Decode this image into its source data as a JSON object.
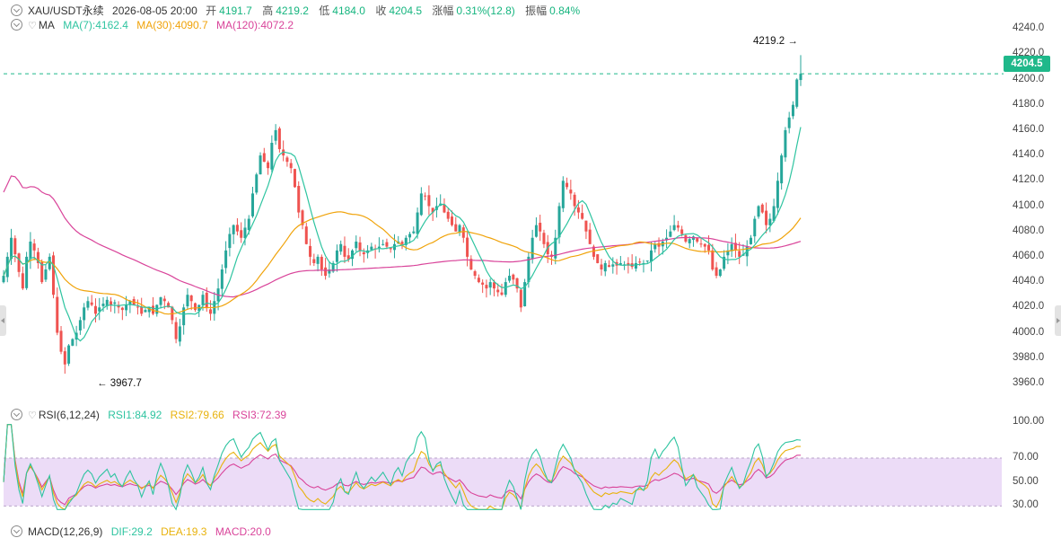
{
  "header": {
    "symbol": "XAU/USDT永续",
    "datetime": "2026-08-05 20:00",
    "open_label": "开",
    "open_value": "4191.7",
    "high_label": "高",
    "high_value": "4219.2",
    "low_label": "低",
    "low_value": "4184.0",
    "close_label": "收",
    "close_value": "4204.5",
    "change_label": "涨幅",
    "change_value": "0.31%(12.8)",
    "amplitude_label": "振幅",
    "amplitude_value": "0.84%"
  },
  "ma_indicator": {
    "name": "MA",
    "ma7": "MA(7):4162.4",
    "ma30": "MA(30):4090.7",
    "ma120": "MA(120):4072.2"
  },
  "rsi_indicator": {
    "name": "RSI(6,12,24)",
    "rsi1": "RSI1:84.92",
    "rsi2": "RSI2:79.66",
    "rsi3": "RSI3:72.39"
  },
  "macd_indicator": {
    "name": "MACD(12,26,9)",
    "dif": "DIF:29.2",
    "dea": "DEA:19.3",
    "macd": "MACD:20.0"
  },
  "annotations": {
    "high_marker": "4219.2",
    "low_marker": "3967.7",
    "current_price": "4204.5"
  },
  "colors": {
    "up": "#26a69a",
    "down": "#ef5350",
    "ma7": "#2ec4a0",
    "ma30": "#f0a30a",
    "ma120": "#d9449a",
    "price_tag": "#1fb88a",
    "rsi_band": "#ecdcf7"
  },
  "chart_data": {
    "type": "candlestick",
    "price_axis_ticks": [
      "4240.0",
      "4220.0",
      "4200.0",
      "4180.0",
      "4160.0",
      "4140.0",
      "4120.0",
      "4100.0",
      "4080.0",
      "4060.0",
      "4040.0",
      "4020.0",
      "4000.0",
      "3980.0",
      "3960.0"
    ],
    "price_ylim": [
      3950,
      4250
    ],
    "rsi_axis_ticks": [
      "100.00",
      "70.00",
      "50.00",
      "30.00"
    ],
    "rsi_ylim": [
      25,
      100
    ],
    "rsi_band": [
      30,
      70
    ],
    "close_path": [
      4045,
      4060,
      4075,
      4062,
      4048,
      4035,
      4060,
      4072,
      4065,
      4055,
      4040,
      4050,
      4060,
      4030,
      4000,
      3985,
      3975,
      3990,
      3995,
      4000,
      4010,
      4020,
      4025,
      4022,
      4015,
      4020,
      4023,
      4026,
      4022,
      4024,
      4020,
      4018,
      4022,
      4025,
      4022,
      4020,
      4015,
      4018,
      4020,
      4015,
      4022,
      4028,
      4025,
      4020,
      4010,
      3995,
      4005,
      4020,
      4030,
      4025,
      4018,
      4022,
      4030,
      4020,
      4015,
      4025,
      4035,
      4050,
      4065,
      4078,
      4085,
      4080,
      4075,
      4083,
      4090,
      4110,
      4125,
      4140,
      4135,
      4130,
      4150,
      4160,
      4145,
      4140,
      4135,
      4130,
      4115,
      4095,
      4085,
      4070,
      4060,
      4055,
      4060,
      4050,
      4045,
      4050,
      4055,
      4065,
      4070,
      4060,
      4058,
      4065,
      4072,
      4065,
      4062,
      4065,
      4068,
      4066,
      4068,
      4070,
      4068,
      4066,
      4070,
      4072,
      4070,
      4075,
      4078,
      4080,
      4095,
      4110,
      4108,
      4100,
      4095,
      4100,
      4102,
      4095,
      4090,
      4085,
      4080,
      4085,
      4075,
      4060,
      4050,
      4045,
      4040,
      4038,
      4035,
      4040,
      4035,
      4032,
      4030,
      4040,
      4045,
      4042,
      4035,
      4020,
      4040,
      4060,
      4075,
      4085,
      4080,
      4070,
      4062,
      4060,
      4075,
      4100,
      4120,
      4115,
      4110,
      4100,
      4095,
      4090,
      4080,
      4070,
      4060,
      4055,
      4050,
      4055,
      4052,
      4054,
      4053,
      4055,
      4054,
      4053,
      4052,
      4055,
      4056,
      4055,
      4057,
      4065,
      4070,
      4068,
      4072,
      4075,
      4080,
      4085,
      4083,
      4078,
      4072,
      4074,
      4076,
      4072,
      4070,
      4068,
      4065,
      4050,
      4045,
      4050,
      4060,
      4065,
      4070,
      4065,
      4060,
      4062,
      4068,
      4075,
      4090,
      4100,
      4095,
      4085,
      4090,
      4100,
      4120,
      4140,
      4160,
      4170,
      4180,
      4200,
      4204.5
    ],
    "ma7_last": 4162.4,
    "ma30_last": 4090.7,
    "ma120_last": 4072.2,
    "highest": 4219.2,
    "lowest": 3967.7,
    "last_close": 4204.5,
    "rsi_last": {
      "rsi1": 84.92,
      "rsi2": 79.66,
      "rsi3": 72.39
    }
  }
}
